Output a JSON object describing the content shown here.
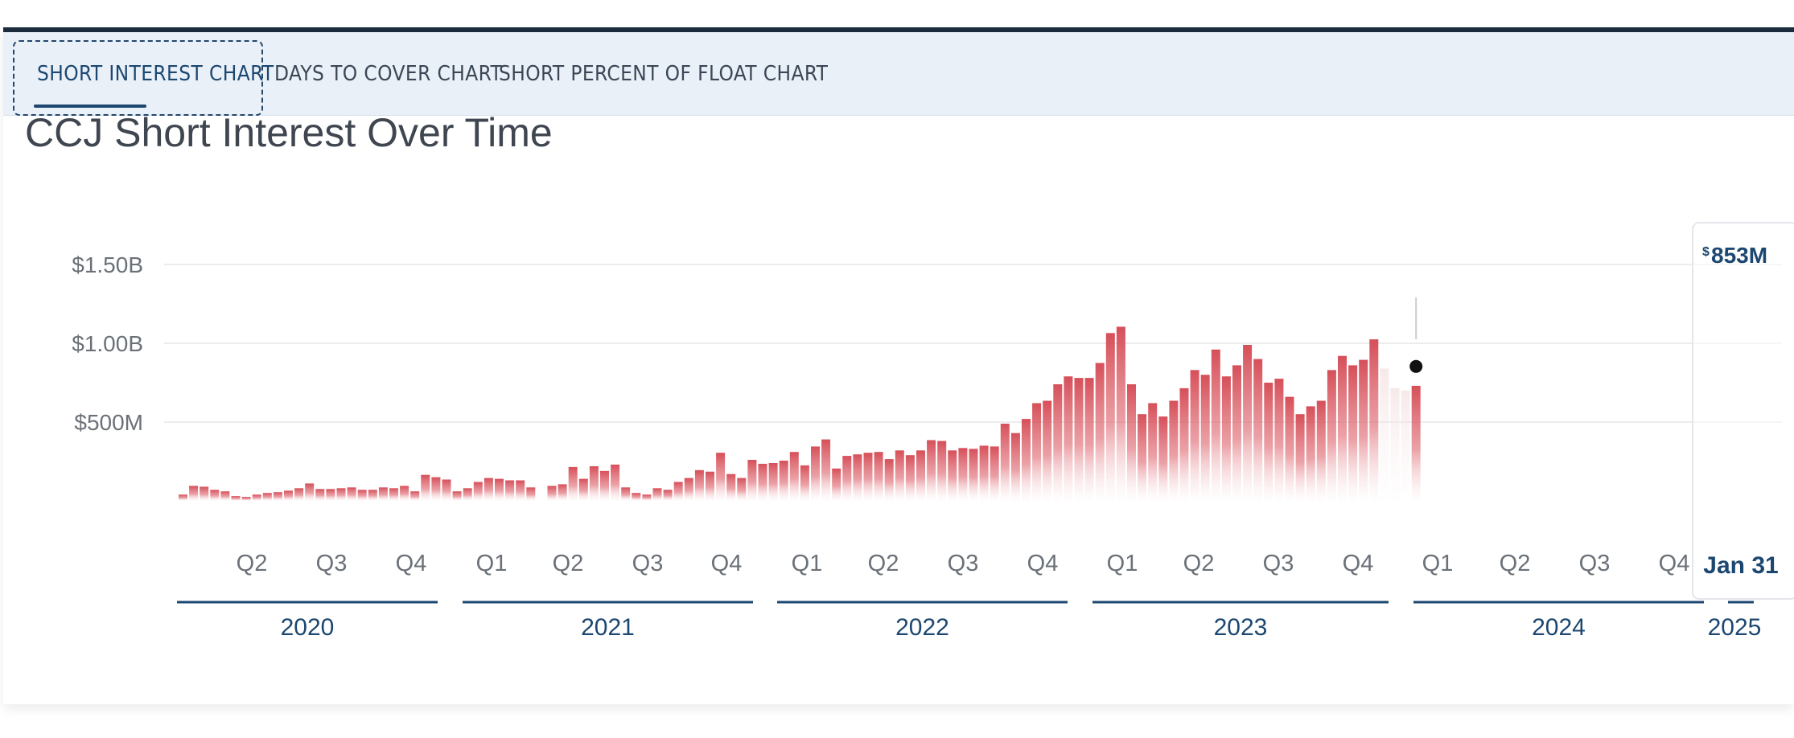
{
  "tabs": [
    {
      "label": "SHORT INTEREST CHART",
      "active": true
    },
    {
      "label": "DAYS TO COVER CHART",
      "active": false
    },
    {
      "label": "SHORT PERCENT OF FLOAT CHART",
      "active": false
    }
  ],
  "colors": {
    "bar": "#d64f59",
    "accent": "#1c4770",
    "tab_bg": "#e9f0f8"
  },
  "chart_data": {
    "type": "bar",
    "title": "CCJ Short Interest Over Time",
    "xlabel": "",
    "ylabel": "",
    "unit": "USD",
    "ylim": [
      0,
      1500000000
    ],
    "y_ticks": [
      {
        "value": 500000000,
        "label": "$500M"
      },
      {
        "value": 1000000000,
        "label": "$1.00B"
      },
      {
        "value": 1500000000,
        "label": "$1.50B"
      }
    ],
    "grid": true,
    "quarter_labels": [
      {
        "year": 2020,
        "labels": [
          "Q2",
          "Q3",
          "Q4"
        ]
      },
      {
        "year": 2021,
        "labels": [
          "Q1",
          "Q2",
          "Q3",
          "Q4"
        ]
      },
      {
        "year": 2022,
        "labels": [
          "Q1",
          "Q2",
          "Q3",
          "Q4"
        ]
      },
      {
        "year": 2023,
        "labels": [
          "Q1",
          "Q2",
          "Q3",
          "Q4"
        ]
      },
      {
        "year": 2024,
        "labels": [
          "Q1",
          "Q2",
          "Q3",
          "Q4"
        ]
      }
    ],
    "years": [
      "2020",
      "2021",
      "2022",
      "2023",
      "2024",
      "2025"
    ],
    "series": [
      {
        "values_millions": [
          40,
          95,
          90,
          70,
          60,
          30,
          25,
          40,
          50,
          55,
          65,
          80,
          110,
          75,
          75,
          80,
          85,
          70,
          70,
          85,
          80,
          95,
          60,
          165,
          150,
          135,
          60,
          80,
          120,
          145,
          140,
          130,
          130,
          85,
          null,
          95,
          105,
          215,
          140,
          220,
          190,
          230,
          85,
          50,
          40,
          80,
          70,
          120,
          145,
          195,
          185,
          305,
          170,
          145,
          260,
          235,
          240,
          255,
          310,
          225,
          345,
          390,
          205,
          285,
          295,
          305,
          310,
          265,
          320,
          290,
          320,
          385,
          380,
          320,
          335,
          330,
          350,
          345,
          490,
          430,
          520,
          620,
          635,
          740,
          790,
          780,
          780,
          875,
          1065,
          1105,
          740,
          550,
          620,
          535,
          635,
          715,
          830,
          800,
          960,
          790,
          860,
          990,
          900,
          750,
          775,
          660,
          550,
          600,
          635,
          830,
          920,
          860,
          895,
          1025,
          840,
          715,
          700,
          730
        ]
      }
    ],
    "highlight": {
      "label": "Jan 31",
      "value_label": "853M",
      "currency": "$",
      "value": 853000000
    }
  }
}
